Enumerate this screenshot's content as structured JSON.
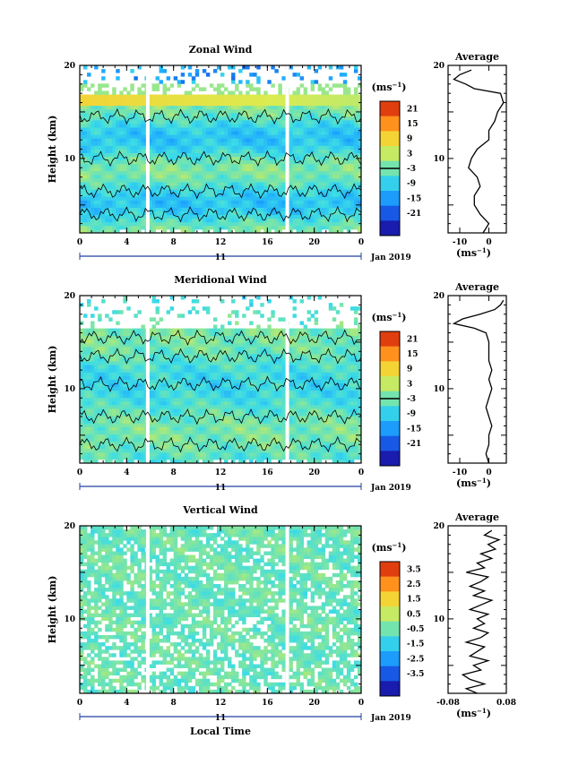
{
  "chart_data": [
    {
      "type": "heatmap",
      "title": "Zonal Wind",
      "xlabel": "",
      "ylabel": "Height (km)",
      "xlim": [
        0,
        24
      ],
      "ylim": [
        2,
        20
      ],
      "x_ticks": [
        "0",
        "4",
        "8",
        "12",
        "16",
        "20",
        "0"
      ],
      "y_ticks": [
        "10",
        "20"
      ],
      "date_row": [
        "11",
        "Jan 2019"
      ],
      "colorbar": {
        "unit": "(ms-1)",
        "range": [
          -24,
          24
        ],
        "ticks": [
          "21",
          "15",
          "9",
          "3",
          "-3",
          "-9",
          "-15",
          "-21"
        ]
      },
      "data_gaps_hours": [
        5.8,
        17.7
      ],
      "average_profile": {
        "title": "Average",
        "xlabel": "(ms-1)",
        "x_ticks": [
          "-10",
          "0"
        ],
        "xlim": [
          -14,
          6
        ],
        "y_ticks": [
          "10",
          "20"
        ],
        "height": [
          2,
          3,
          4,
          5,
          6,
          7,
          8,
          9,
          10,
          11,
          12,
          13,
          14,
          15,
          16,
          17,
          17.5,
          18,
          18.5,
          19,
          19.5
        ],
        "value": [
          -2,
          0,
          -3,
          -5,
          -5,
          -3,
          -4,
          -7,
          -6,
          -4,
          0,
          0,
          2,
          3,
          5,
          4,
          -5,
          -8,
          -12,
          -10,
          -6
        ]
      }
    },
    {
      "type": "heatmap",
      "title": "Meridional Wind",
      "xlabel": "",
      "ylabel": "Height (km)",
      "xlim": [
        0,
        24
      ],
      "ylim": [
        2,
        20
      ],
      "x_ticks": [
        "0",
        "4",
        "8",
        "12",
        "16",
        "20",
        "0"
      ],
      "y_ticks": [
        "10",
        "20"
      ],
      "date_row": [
        "11",
        "Jan 2019"
      ],
      "colorbar": {
        "unit": "(ms-1)",
        "range": [
          -24,
          24
        ],
        "ticks": [
          "21",
          "15",
          "9",
          "3",
          "-3",
          "-9",
          "-15",
          "-21"
        ]
      },
      "data_gaps_hours": [
        5.8,
        17.7
      ],
      "average_profile": {
        "title": "Average",
        "xlabel": "(ms-1)",
        "x_ticks": [
          "-10",
          "0"
        ],
        "xlim": [
          -14,
          6
        ],
        "y_ticks": [
          "10",
          "20"
        ],
        "height": [
          2,
          3,
          4,
          5,
          6,
          7,
          8,
          9,
          10,
          11,
          12,
          13,
          14,
          15,
          16,
          16.5,
          17,
          17.5,
          18,
          18.5,
          19,
          19.5
        ],
        "value": [
          0,
          -1,
          0,
          0,
          1,
          0,
          -1,
          0,
          1,
          0,
          1,
          0,
          0,
          0,
          -1,
          -5,
          -12,
          -9,
          -3,
          2,
          4,
          5
        ]
      }
    },
    {
      "type": "heatmap",
      "title": "Vertical Wind",
      "xlabel": "Local Time",
      "ylabel": "Height (km)",
      "xlim": [
        0,
        24
      ],
      "ylim": [
        2,
        20
      ],
      "x_ticks": [
        "0",
        "4",
        "8",
        "12",
        "16",
        "20",
        "0"
      ],
      "y_ticks": [
        "10",
        "20"
      ],
      "date_row": [
        "11",
        "Jan 2019"
      ],
      "colorbar": {
        "unit": "(ms-1)",
        "range": [
          -4,
          4
        ],
        "ticks": [
          "3.5",
          "2.5",
          "1.5",
          "0.5",
          "-0.5",
          "-1.5",
          "-2.5",
          "-3.5"
        ]
      },
      "data_gaps_hours": [
        5.8,
        17.7
      ],
      "average_profile": {
        "title": "Average",
        "xlabel": "(ms-1)",
        "x_ticks": [
          "-0.08",
          "0.08"
        ],
        "xlim": [
          -0.08,
          0.08
        ],
        "y_ticks": [
          "10",
          "20"
        ],
        "height": [
          2,
          2.5,
          3,
          3.5,
          4,
          4.5,
          5,
          5.5,
          6,
          6.5,
          7,
          7.5,
          8,
          8.5,
          9,
          9.5,
          10,
          10.5,
          11,
          11.5,
          12,
          12.5,
          13,
          13.5,
          14,
          14.5,
          15,
          15.5,
          16,
          16.5,
          17,
          17.5,
          18,
          18.5,
          19,
          19.5
        ],
        "value": [
          0.0,
          -0.03,
          0.02,
          -0.02,
          -0.04,
          0.01,
          -0.01,
          0.03,
          -0.02,
          0.0,
          0.02,
          -0.03,
          0.01,
          0.03,
          -0.01,
          0.02,
          0.0,
          0.03,
          -0.02,
          0.01,
          0.04,
          -0.01,
          0.02,
          -0.02,
          0.01,
          0.03,
          -0.03,
          0.02,
          0.0,
          0.04,
          0.01,
          0.05,
          0.03,
          0.06,
          0.02,
          0.04
        ]
      }
    }
  ]
}
